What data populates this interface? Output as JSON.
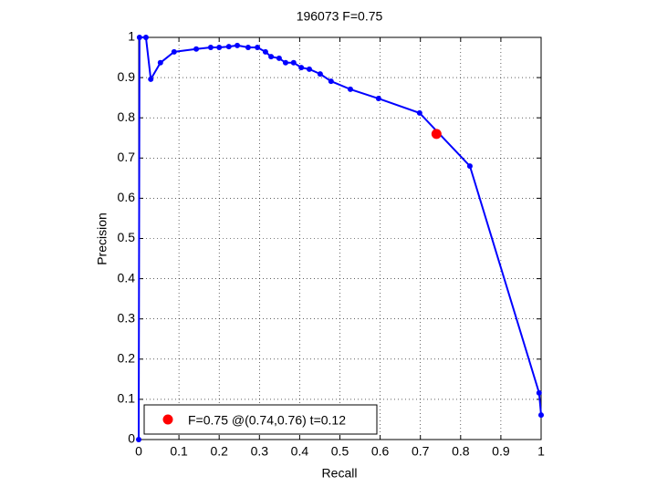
{
  "chart_data": {
    "type": "line",
    "title": "196073 F=0.75",
    "x_label": "Recall",
    "y_label": "Precision",
    "x": [
      0,
      0.002,
      0.018,
      0.03,
      0.054,
      0.088,
      0.143,
      0.179,
      0.2,
      0.224,
      0.245,
      0.272,
      0.295,
      0.315,
      0.329,
      0.349,
      0.365,
      0.385,
      0.404,
      0.424,
      0.451,
      0.478,
      0.526,
      0.596,
      0.698,
      0.823,
      0.995,
      1
    ],
    "series": [
      {
        "color": "#0000ff",
        "values": [
          0,
          1,
          1,
          0.896,
          0.937,
          0.964,
          0.971,
          0.975,
          0.975,
          0.977,
          0.98,
          0.975,
          0.975,
          0.964,
          0.952,
          0.948,
          0.937,
          0.937,
          0.925,
          0.921,
          0.909,
          0.891,
          0.871,
          0.848,
          0.812,
          0.68,
          0.116,
          0.061
        ]
      }
    ],
    "highlight": {
      "name": "F=0.75 @(0.74,0.76) t=0.12",
      "color": "#ff0000",
      "x": 0.74,
      "y": 0.76
    },
    "xlim": [
      0,
      1
    ],
    "ylim": [
      0,
      1
    ],
    "xticks": [
      0,
      0.1,
      0.2,
      0.3,
      0.4,
      0.5,
      0.6,
      0.7,
      0.8,
      0.9,
      1
    ],
    "yticks": [
      0,
      0.1,
      0.2,
      0.3,
      0.4,
      0.5,
      0.6,
      0.7,
      0.8,
      0.9,
      1
    ],
    "grid": true,
    "legend": "lower-left"
  }
}
